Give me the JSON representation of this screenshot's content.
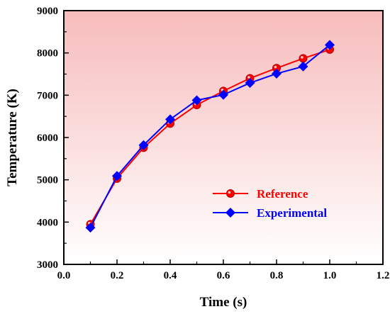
{
  "chart_data": {
    "type": "line",
    "xlabel": "Time (s)",
    "ylabel": "Temperature (K)",
    "xlim": [
      0.0,
      1.2
    ],
    "ylim": [
      3000,
      9000
    ],
    "x_ticks": [
      "0.0",
      "0.2",
      "0.4",
      "0.6",
      "0.8",
      "1.0",
      "1.2"
    ],
    "y_ticks": [
      "3000",
      "4000",
      "5000",
      "6000",
      "7000",
      "8000",
      "9000"
    ],
    "grid": false,
    "legend_position": "lower-right",
    "background_gradient": {
      "top": "#f7bcbc",
      "bottom": "#ffffff"
    },
    "series": [
      {
        "name": "Reference",
        "color": "#ff0000",
        "marker": "circle",
        "x": [
          0.1,
          0.2,
          0.3,
          0.4,
          0.5,
          0.6,
          0.7,
          0.8,
          0.9,
          1.0
        ],
        "y": [
          3950,
          5030,
          5760,
          6330,
          6770,
          7100,
          7400,
          7640,
          7870,
          8080
        ]
      },
      {
        "name": "Experimental",
        "color": "#0000ff",
        "marker": "diamond",
        "x": [
          0.1,
          0.2,
          0.3,
          0.4,
          0.5,
          0.6,
          0.7,
          0.8,
          0.9,
          1.0
        ],
        "y": [
          3870,
          5090,
          5820,
          6430,
          6880,
          7010,
          7290,
          7510,
          7680,
          8190
        ]
      }
    ]
  }
}
